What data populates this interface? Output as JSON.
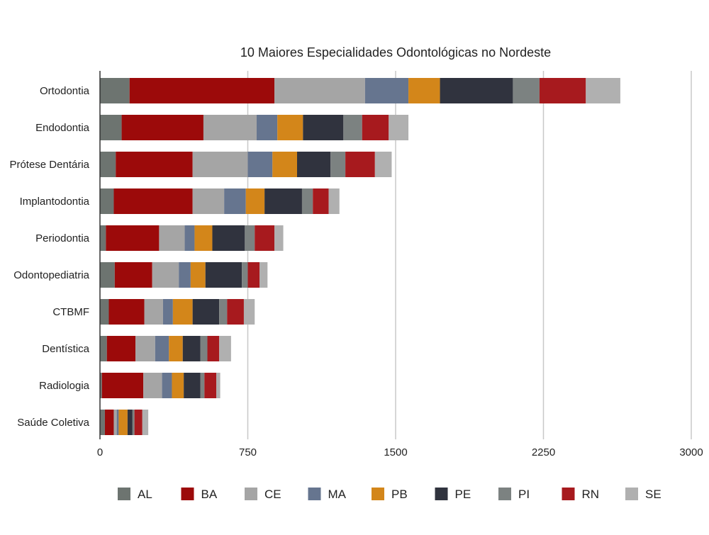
{
  "chart_data": {
    "type": "bar",
    "orientation": "horizontal",
    "stacked": true,
    "title": "10 Maiores Especialidades Odontológicas no Nordeste",
    "xlabel": "",
    "ylabel": "",
    "xlim": [
      0,
      3000
    ],
    "x_ticks": [
      "0",
      "750",
      "1500",
      "2250",
      "3000"
    ],
    "x_tick_values": [
      0,
      750,
      1500,
      2250,
      3000
    ],
    "grid": "vertical",
    "legend_position": "bottom",
    "categories": [
      "Ortodontia",
      "Endodontia",
      "Prótese Dentária",
      "Implantodontia",
      "Periodontia",
      "Odontopediatria",
      "CTBMF",
      "Dentística",
      "Radiologia",
      "Saúde Coletiva"
    ],
    "series": [
      {
        "name": "AL",
        "color": "#6d7470",
        "values": [
          150,
          110,
          80,
          70,
          30,
          75,
          45,
          35,
          10,
          25
        ]
      },
      {
        "name": "BA",
        "color": "#9c0a0a",
        "values": [
          735,
          415,
          390,
          400,
          270,
          190,
          180,
          145,
          210,
          45
        ]
      },
      {
        "name": "CE",
        "color": "#a5a5a5",
        "values": [
          460,
          270,
          280,
          160,
          130,
          135,
          95,
          100,
          95,
          15
        ]
      },
      {
        "name": "MA",
        "color": "#66758f",
        "values": [
          220,
          105,
          125,
          110,
          50,
          60,
          50,
          70,
          50,
          10
        ]
      },
      {
        "name": "PB",
        "color": "#d3861a",
        "values": [
          160,
          130,
          125,
          95,
          90,
          75,
          100,
          70,
          60,
          45
        ]
      },
      {
        "name": "PE",
        "color": "#30333e",
        "values": [
          370,
          205,
          170,
          190,
          165,
          185,
          135,
          90,
          85,
          25
        ]
      },
      {
        "name": "PI",
        "color": "#7c8281",
        "values": [
          135,
          95,
          75,
          55,
          50,
          30,
          40,
          35,
          20,
          10
        ]
      },
      {
        "name": "RN",
        "color": "#a71a1e",
        "values": [
          235,
          135,
          150,
          80,
          100,
          60,
          85,
          60,
          60,
          40
        ]
      },
      {
        "name": "SE",
        "color": "#b0b0b0",
        "values": [
          175,
          100,
          85,
          55,
          45,
          40,
          55,
          60,
          20,
          30
        ]
      }
    ]
  }
}
